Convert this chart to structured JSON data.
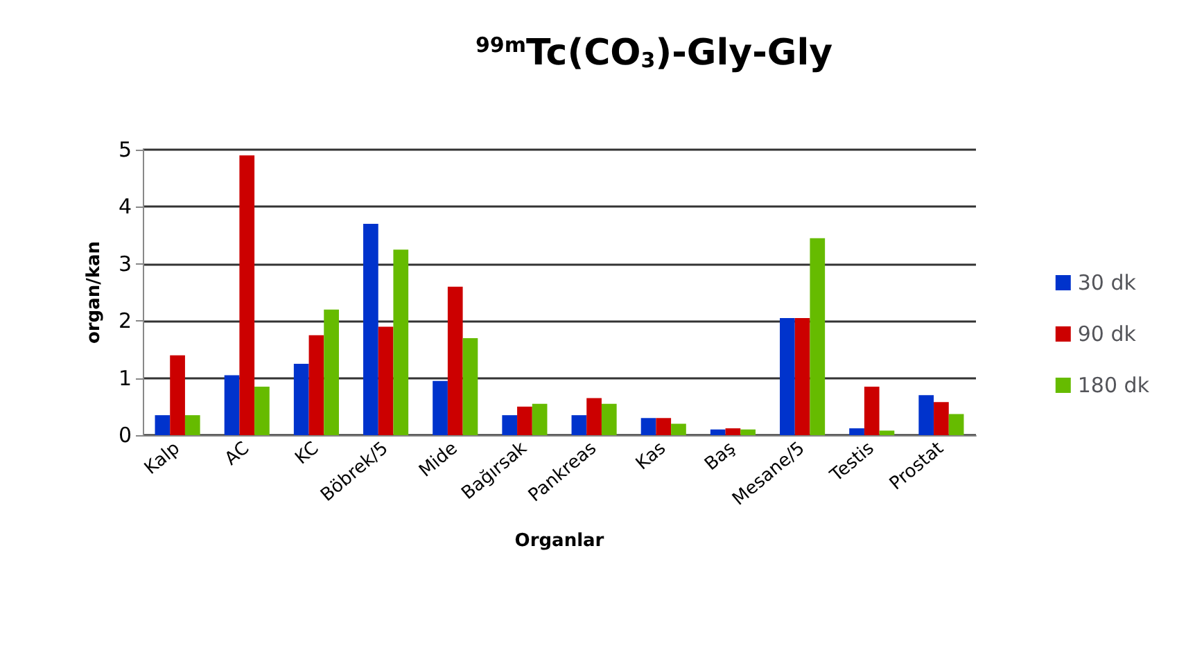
{
  "chart_data": {
    "type": "bar",
    "title": "$^{99m}$Tc(CO$_{3}$)-Gly-Gly",
    "xlabel": "Organlar",
    "ylabel": "organ/kan",
    "categories": [
      "Kalp",
      "AC",
      "KC",
      "Böbrek/5",
      "Mide",
      "Bağırsak",
      "Pankreas",
      "Kas",
      "Baş",
      "Mesane/5",
      "Testis",
      "Prostat"
    ],
    "series": [
      {
        "name": "30 dk",
        "color": "#0033cc",
        "values": [
          0.35,
          1.05,
          1.25,
          3.7,
          0.95,
          0.35,
          0.35,
          0.3,
          0.1,
          2.05,
          0.12,
          0.7
        ]
      },
      {
        "name": "90 dk",
        "color": "#cc0000",
        "values": [
          1.4,
          4.9,
          1.75,
          1.9,
          2.6,
          0.5,
          0.65,
          0.3,
          0.12,
          2.05,
          0.85,
          0.58
        ]
      },
      {
        "name": "180 dk",
        "color": "#66bb00",
        "values": [
          0.35,
          0.85,
          2.2,
          3.25,
          1.7,
          0.55,
          0.55,
          0.2,
          0.1,
          3.45,
          0.08,
          0.37
        ]
      }
    ],
    "ylim": [
      0,
      5
    ],
    "yticks": [
      0,
      1,
      2,
      3,
      4,
      5
    ],
    "grid": "y",
    "legend": "right"
  }
}
